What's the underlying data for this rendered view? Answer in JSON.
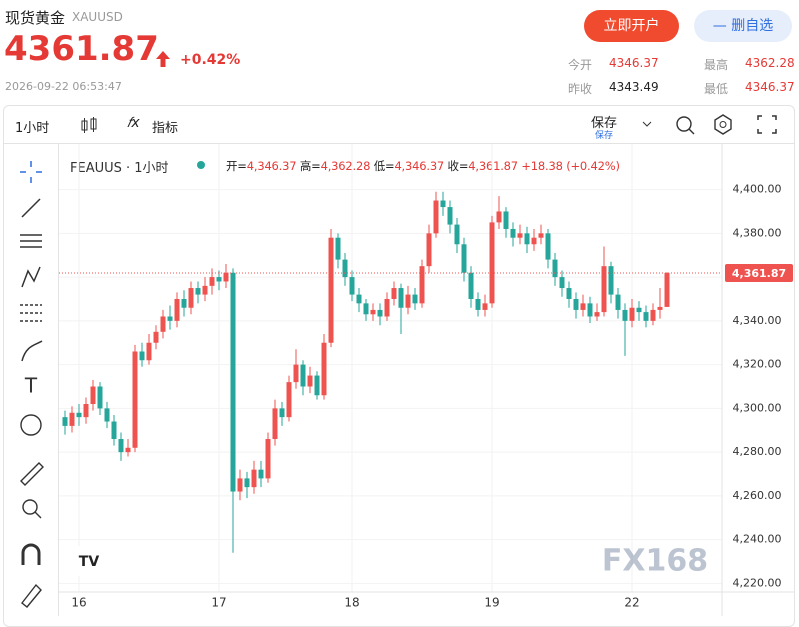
{
  "header": {
    "title": "现货黄金",
    "symbol": "XAUUSD",
    "price": 4361.87,
    "change": "+0.42%",
    "timestamp": "2026-09-22 06:53:47",
    "open_account": "立即开户",
    "remove_watch": "删自选",
    "stats": [
      {
        "label": "今开",
        "value": 4346.37
      },
      {
        "label": "最高",
        "value": 4362.28
      },
      {
        "label": "昨收",
        "value": 4343.49
      },
      {
        "label": "最低",
        "value": 4346.37
      }
    ]
  },
  "toolbar": {
    "interval": "1小时",
    "indicators": "指标",
    "save": "保存",
    "save_sub": "保存"
  },
  "legend": {
    "symbol": "FEAUUS · 1小时",
    "ohlc": [
      {
        "label": "开=",
        "value": "4,346.37"
      },
      {
        "label": "高=",
        "value": "4,362.28"
      },
      {
        "label": "低=",
        "value": "4,346.37"
      },
      {
        "label": "收=",
        "value": "4,361.87"
      }
    ],
    "change": "+18.38 (+0.42%)"
  },
  "watermark": "FX168",
  "chart_data": {
    "type": "candlestick",
    "categories": [
      null,
      null,
      "16",
      null,
      null,
      null,
      null,
      null,
      null,
      null,
      null,
      null,
      null,
      null,
      null,
      null,
      null,
      null,
      null,
      null,
      null,
      null,
      "17",
      null,
      null,
      null,
      null,
      null,
      null,
      null,
      null,
      null,
      null,
      null,
      null,
      null,
      null,
      null,
      null,
      null,
      null,
      "18",
      null,
      null,
      null,
      null,
      null,
      null,
      null,
      null,
      null,
      null,
      null,
      null,
      null,
      null,
      null,
      null,
      null,
      null,
      null,
      "19",
      null,
      null,
      null,
      null,
      null,
      null,
      null,
      null,
      null,
      null,
      null,
      null,
      null,
      null,
      null,
      null,
      null,
      null,
      null,
      "22",
      null,
      null,
      null,
      null,
      null
    ],
    "open": [
      4296,
      4292,
      4298,
      4296,
      4302,
      4310,
      4300,
      4294,
      4286,
      4280,
      4282,
      4326,
      4322,
      4330,
      4335,
      4342,
      4340,
      4350,
      4346,
      4355,
      4352,
      4356,
      4360,
      4358,
      4362,
      4262,
      4268,
      4264,
      4272,
      4268,
      4286,
      4300,
      4296,
      4312,
      4320,
      4310,
      4315,
      4306,
      4330,
      4378,
      4368,
      4360,
      4352,
      4348,
      4343,
      4345,
      4342,
      4350,
      4355,
      4346,
      4352,
      4348,
      4365,
      4380,
      4395,
      4392,
      4384,
      4375,
      4362,
      4350,
      4345,
      4348,
      4385,
      4390,
      4382,
      4378,
      4380,
      4375,
      4378,
      4380,
      4368,
      4360,
      4355,
      4350,
      4345,
      4348,
      4342,
      4344,
      4365,
      4352,
      4345,
      4340,
      4346,
      4344,
      4340,
      4345,
      4346.37
    ],
    "high": [
      4299,
      4301,
      4302,
      4305,
      4313,
      4312,
      4303,
      4297,
      4289,
      4286,
      4329,
      4330,
      4334,
      4338,
      4345,
      4347,
      4353,
      4354,
      4358,
      4358,
      4360,
      4364,
      4363,
      4366,
      4364,
      4272,
      4271,
      4276,
      4276,
      4289,
      4304,
      4303,
      4315,
      4327,
      4322,
      4319,
      4317,
      4334,
      4382,
      4380,
      4371,
      4363,
      4355,
      4350,
      4348,
      4348,
      4353,
      4358,
      4357,
      4356,
      4355,
      4368,
      4384,
      4399,
      4399,
      4395,
      4387,
      4378,
      4365,
      4353,
      4352,
      4388,
      4397,
      4392,
      4385,
      4384,
      4383,
      4382,
      4384,
      4382,
      4371,
      4363,
      4358,
      4353,
      4352,
      4351,
      4348,
      4374,
      4367,
      4355,
      4348,
      4350,
      4349,
      4347,
      4348,
      4355,
      4362.28
    ],
    "low": [
      4288,
      4289,
      4292,
      4293,
      4299,
      4297,
      4291,
      4283,
      4276,
      4278,
      4280,
      4319,
      4320,
      4327,
      4332,
      4336,
      4337,
      4342,
      4343,
      4348,
      4349,
      4352,
      4354,
      4355,
      4234,
      4258,
      4259,
      4261,
      4264,
      4266,
      4283,
      4292,
      4294,
      4309,
      4306,
      4307,
      4304,
      4304,
      4328,
      4364,
      4356,
      4349,
      4344,
      4340,
      4340,
      4338,
      4340,
      4347,
      4334,
      4343,
      4345,
      4346,
      4362,
      4378,
      4388,
      4380,
      4371,
      4358,
      4346,
      4342,
      4342,
      4346,
      4382,
      4378,
      4374,
      4375,
      4371,
      4372,
      4375,
      4364,
      4356,
      4351,
      4346,
      4341,
      4342,
      4339,
      4340,
      4342,
      4348,
      4341,
      4324,
      4337,
      4340,
      4337,
      4338,
      4341,
      4346.37
    ],
    "close": [
      4292,
      4298,
      4296,
      4302,
      4310,
      4300,
      4294,
      4286,
      4280,
      4282,
      4326,
      4322,
      4330,
      4335,
      4342,
      4340,
      4350,
      4346,
      4355,
      4352,
      4356,
      4360,
      4358,
      4362,
      4262,
      4268,
      4264,
      4272,
      4268,
      4286,
      4300,
      4296,
      4312,
      4320,
      4310,
      4315,
      4306,
      4330,
      4378,
      4368,
      4360,
      4352,
      4348,
      4343,
      4345,
      4342,
      4350,
      4355,
      4346,
      4352,
      4348,
      4365,
      4380,
      4395,
      4392,
      4384,
      4375,
      4362,
      4350,
      4345,
      4348,
      4385,
      4390,
      4382,
      4378,
      4380,
      4375,
      4378,
      4380,
      4368,
      4360,
      4355,
      4350,
      4345,
      4348,
      4342,
      4344,
      4365,
      4352,
      4345,
      4340,
      4346,
      4344,
      4340,
      4345,
      4346.37,
      4361.87
    ],
    "up_color": "#ef5350",
    "down_color": "#26a69a",
    "ylim": [
      4217,
      4419
    ],
    "yticks": [
      {
        "value": 4220,
        "label": "4,220.00"
      },
      {
        "value": 4240,
        "label": "4,240.00"
      },
      {
        "value": 4260,
        "label": "4,260.00"
      },
      {
        "value": 4280,
        "label": "4,280.00"
      },
      {
        "value": 4300,
        "label": "4,300.00"
      },
      {
        "value": 4320,
        "label": "4,320.00"
      },
      {
        "value": 4340,
        "label": "4,340.00"
      },
      {
        "value": 4360,
        "label": "4,360.00"
      },
      {
        "value": 4380,
        "label": "4,380.00"
      },
      {
        "value": 4400,
        "label": "4,400.00"
      }
    ],
    "last_price": {
      "value": 4361.87,
      "label": "4,361.87"
    },
    "grid": true
  }
}
